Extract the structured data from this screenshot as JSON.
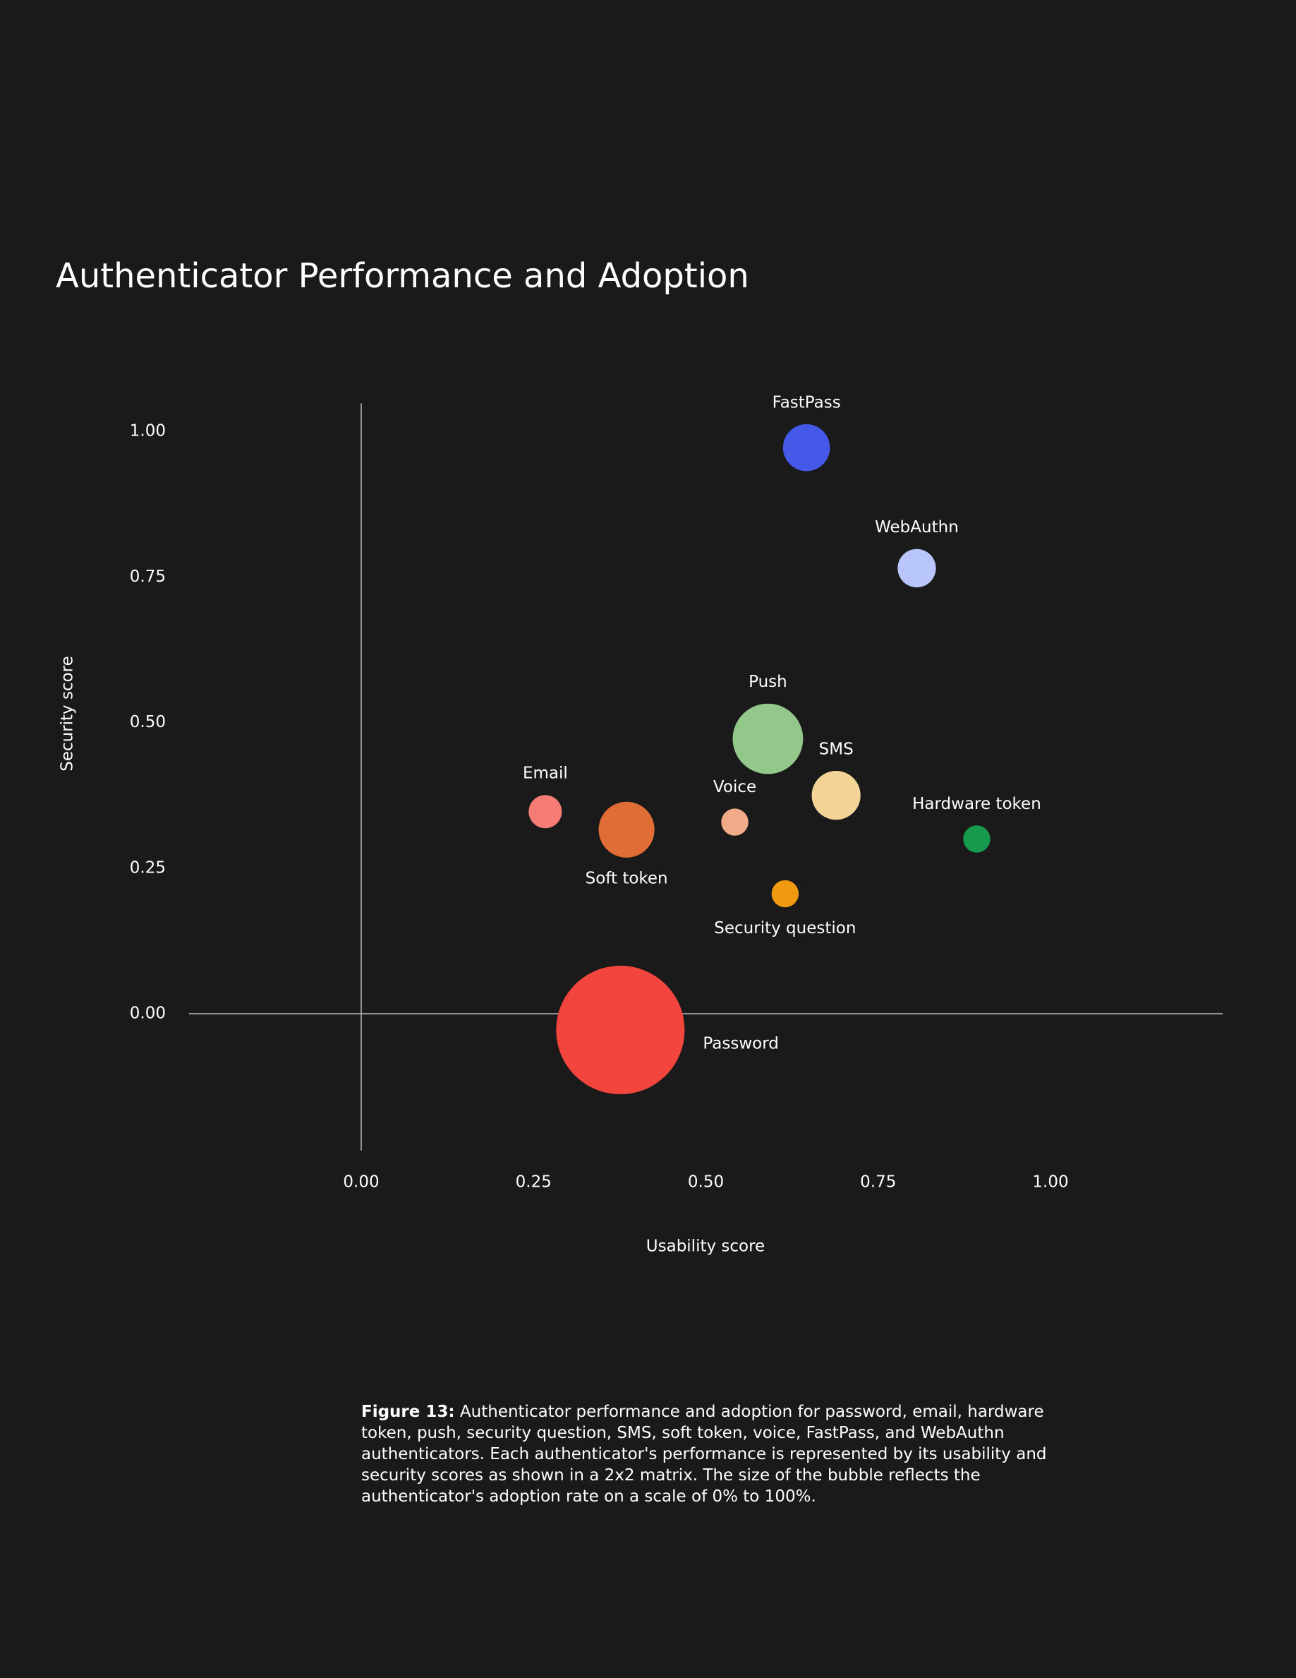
{
  "chart_data": {
    "type": "bubble",
    "title": "Authenticator Performance and Adoption",
    "x_label": "Usability score",
    "y_label": "Security score",
    "categories": [
      "FastPass",
      "WebAuthn",
      "Push",
      "SMS",
      "Hardware token",
      "Email",
      "Soft token",
      "Voice",
      "Security question",
      "Password"
    ],
    "x": [
      0.646,
      0.806,
      0.59,
      0.689,
      0.893,
      0.267,
      0.385,
      0.542,
      0.615,
      0.376
    ],
    "y": [
      0.972,
      0.765,
      0.472,
      0.375,
      0.3,
      0.347,
      0.316,
      0.329,
      0.206,
      -0.028
    ],
    "sizes": [
      12,
      8,
      27,
      13,
      4,
      6,
      17,
      4,
      4,
      90
    ],
    "colors": [
      "#4459e8",
      "#b8c6fc",
      "#92c98b",
      "#f3d496",
      "#169a4e",
      "#f47c74",
      "#e06d35",
      "#f2ab89",
      "#f09a12",
      "#f2453d"
    ],
    "xlim": [
      -0.25,
      1.25
    ],
    "ylim": [
      -0.235,
      1.048
    ],
    "xticks": [
      {
        "value": 0,
        "label": "0.00"
      },
      {
        "value": 0.25,
        "label": "0.25"
      },
      {
        "value": 0.5,
        "label": "0.50"
      },
      {
        "value": 0.75,
        "label": "0.75"
      },
      {
        "value": 1,
        "label": "1.00"
      }
    ],
    "yticks": [
      {
        "value": 0,
        "label": "0.00"
      },
      {
        "value": 0.25,
        "label": "0.25"
      },
      {
        "value": 0.5,
        "label": "0.50"
      },
      {
        "value": 0.75,
        "label": "0.75"
      },
      {
        "value": 1,
        "label": "1.00"
      }
    ],
    "grid": false
  },
  "caption": {
    "label": "Figure 13:",
    "text": "Authenticator performance and adoption for password, email, hardware token, push, security question, SMS, soft token, voice, FastPass, and WebAuthn authenticators. Each authenticator's performance is represented by its usability and security scores as shown in a 2x2 matrix. The size of the bubble reflects the authenticator's adoption rate on a scale of 0% to 100%."
  }
}
